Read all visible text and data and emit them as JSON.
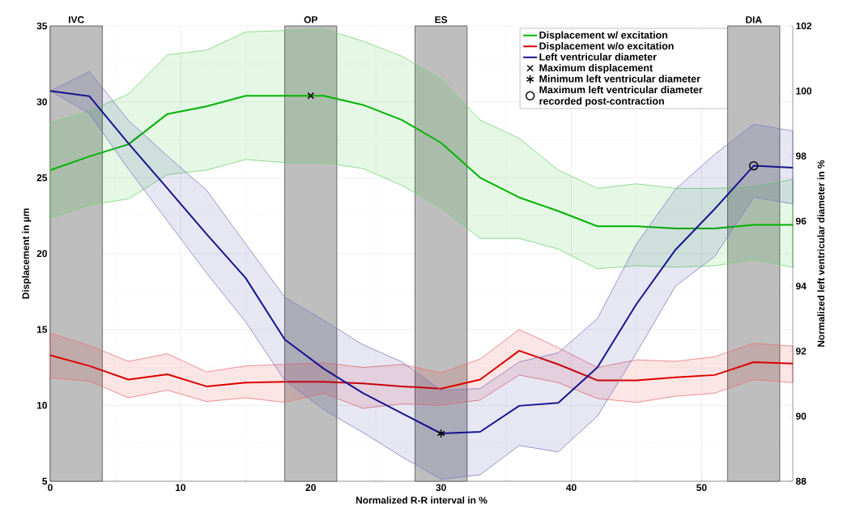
{
  "chart_data": {
    "type": "line",
    "xlabel": "Normalized R-R interval in %",
    "ylabel": "Displacement in µm",
    "y2label": "Normalized left ventricular diameter in %",
    "x": [
      0,
      3,
      6,
      9,
      12,
      15,
      18,
      21,
      24,
      27,
      30,
      33,
      36,
      39,
      42,
      45,
      48,
      51,
      54,
      57
    ],
    "series": [
      {
        "name": "Displacement w/ excitation",
        "color": "#00b400",
        "values": [
          25.5,
          26.4,
          27.2,
          29.2,
          29.7,
          30.4,
          30.4,
          30.4,
          29.8,
          28.8,
          27.3,
          25.0,
          23.7,
          22.8,
          21.8,
          21.8,
          21.65,
          21.65,
          21.9,
          21.9
        ],
        "upper": [
          28.6,
          29.4,
          30.5,
          33.1,
          33.4,
          34.6,
          34.7,
          34.8,
          34.0,
          33.0,
          31.5,
          28.8,
          27.6,
          25.5,
          24.3,
          24.6,
          24.3,
          24.3,
          24.4,
          24.9
        ],
        "lower": [
          22.3,
          23.2,
          23.6,
          25.2,
          25.5,
          26.2,
          26.0,
          26.0,
          25.6,
          24.5,
          23.0,
          21.0,
          21.0,
          20.3,
          19.0,
          19.2,
          19.1,
          19.2,
          19.6,
          19.1
        ]
      },
      {
        "name": "Displacement w/o excitation",
        "color": "#dd0000",
        "values": [
          13.3,
          12.6,
          11.7,
          12.05,
          11.25,
          11.5,
          11.55,
          11.55,
          11.45,
          11.25,
          11.1,
          11.7,
          13.6,
          12.7,
          11.65,
          11.65,
          11.85,
          12.0,
          12.85,
          12.75
        ],
        "upper": [
          14.75,
          13.95,
          12.9,
          13.4,
          12.2,
          12.6,
          12.7,
          12.8,
          12.5,
          12.7,
          12.15,
          13.05,
          15.0,
          13.8,
          12.5,
          13.0,
          12.9,
          13.2,
          14.1,
          13.9
        ],
        "lower": [
          11.8,
          11.6,
          10.5,
          11.0,
          10.25,
          10.5,
          10.2,
          10.8,
          9.8,
          10.1,
          10.0,
          10.35,
          12.0,
          11.5,
          10.45,
          10.2,
          10.6,
          10.8,
          11.7,
          11.5
        ]
      },
      {
        "name": "Left ventricular diameter",
        "color": "#14148f",
        "axis": "y2",
        "values": [
          100.0,
          99.84,
          98.39,
          97.0,
          95.6,
          94.25,
          92.36,
          91.46,
          90.71,
          90.09,
          89.47,
          89.52,
          90.32,
          90.41,
          91.5,
          93.45,
          95.12,
          96.37,
          97.7,
          97.64
        ],
        "upper": [
          100.0,
          100.6,
          99.1,
          98.0,
          96.95,
          95.3,
          93.66,
          92.95,
          92.2,
          91.67,
          90.8,
          90.85,
          91.67,
          91.95,
          93.0,
          95.3,
          96.98,
          98.05,
          98.98,
          98.77
        ],
        "lower": [
          100.0,
          99.31,
          97.6,
          96.0,
          94.4,
          92.9,
          91.1,
          90.2,
          89.5,
          88.75,
          88.06,
          88.2,
          89.1,
          88.9,
          90.0,
          91.95,
          94.0,
          94.91,
          96.73,
          96.53
        ]
      },
      {
        "name": "Maximum displacement",
        "type": "scatter",
        "marker": "cross",
        "color": "#000000",
        "x": [
          20
        ],
        "values": [
          30.4
        ]
      },
      {
        "name": "Minimum left ventricular diameter",
        "type": "scatter",
        "color": "#000000",
        "axis": "y2",
        "x": [
          30
        ],
        "values": [
          89.47
        ]
      },
      {
        "name": "Maximum left ventricular diameter recorded post-contraction",
        "type": "scatter",
        "marker": "circle",
        "color": "#000000",
        "axis": "y2",
        "x": [
          54
        ],
        "values": [
          97.7
        ]
      }
    ],
    "bands": [
      {
        "axis": "x",
        "from": 0,
        "to": 4,
        "label": "IVC",
        "color": "#bebebe"
      },
      {
        "axis": "x",
        "from": 18,
        "to": 22,
        "label": "OP",
        "color": "#bebebe"
      },
      {
        "axis": "x",
        "from": 28,
        "to": 32,
        "label": "ES",
        "color": "#bebebe"
      },
      {
        "axis": "x",
        "from": 52,
        "to": 56,
        "label": "DIA",
        "color": "#bebebe"
      }
    ],
    "xlim": [
      0,
      57
    ],
    "xticks": [
      0,
      10,
      20,
      30,
      40,
      50
    ],
    "ylim": [
      5,
      35
    ],
    "yticks": [
      5,
      10,
      15,
      20,
      25,
      30,
      35
    ],
    "y2lim": [
      88,
      102
    ],
    "y2ticks": [
      88,
      90,
      92,
      94,
      96,
      98,
      100,
      102
    ],
    "grid": true,
    "legend": "top right",
    "line_style": "solid"
  }
}
